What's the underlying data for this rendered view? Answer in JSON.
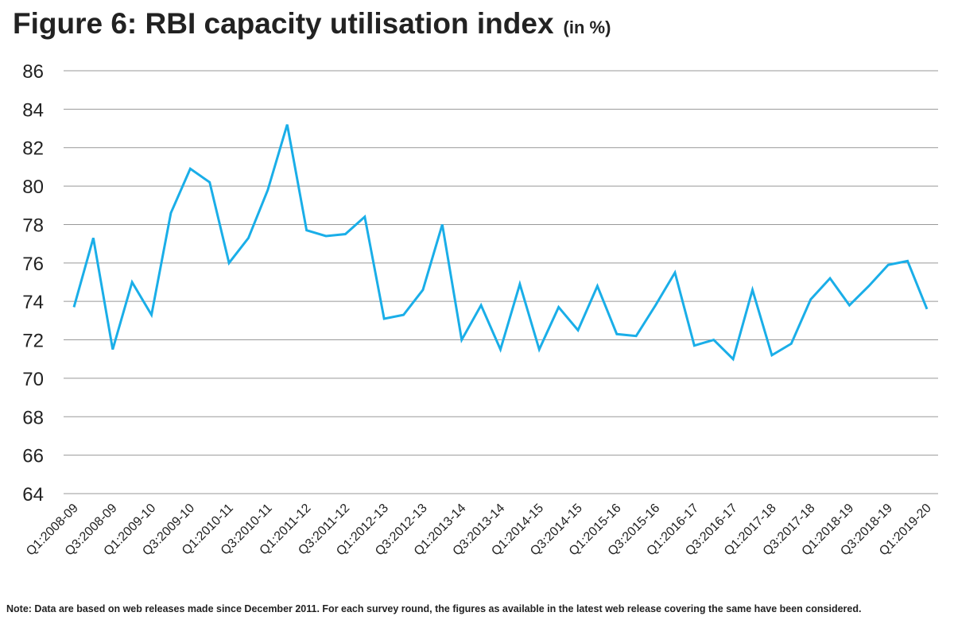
{
  "chart_data": {
    "type": "line",
    "title": "Figure 6: RBI capacity utilisation index",
    "subtitle": "(in %)",
    "note": "Note: Data are based on web releases made since December 2011. For each survey round, the figures as available in the latest web release covering the same have been considered.",
    "categories": [
      "Q1:2008-09",
      null,
      "Q3:2008-09",
      null,
      "Q1:2009-10",
      null,
      "Q3:2009-10",
      null,
      "Q1:2010-11",
      null,
      "Q3:2010-11",
      null,
      "Q1:2011-12",
      null,
      "Q3:2011-12",
      null,
      "Q1:2012-13",
      null,
      "Q3:2012-13",
      null,
      "Q1:2013-14",
      null,
      "Q3:2013-14",
      null,
      "Q1:2014-15",
      null,
      "Q3:2014-15",
      null,
      "Q1:2015-16",
      null,
      "Q3:2015-16",
      null,
      "Q1:2016-17",
      null,
      "Q3:2016-17",
      null,
      "Q1:2017-18",
      null,
      "Q3:2017-18",
      null,
      "Q1:2018-19",
      null,
      "Q3:2018-19",
      null,
      "Q1:2019-20"
    ],
    "values": [
      73.7,
      77.3,
      71.5,
      75.0,
      73.3,
      78.6,
      80.9,
      80.2,
      76.0,
      77.3,
      79.8,
      83.2,
      77.7,
      77.4,
      77.5,
      78.4,
      73.1,
      73.3,
      74.6,
      78.0,
      72.0,
      73.8,
      71.5,
      74.9,
      71.5,
      73.7,
      72.5,
      74.8,
      72.3,
      72.2,
      73.8,
      75.5,
      71.7,
      72.0,
      71.0,
      74.6,
      71.2,
      71.8,
      74.1,
      75.2,
      73.8,
      74.8,
      75.9,
      76.1,
      73.6
    ],
    "color": "#1aaee8",
    "ylim": [
      64,
      86
    ],
    "yticks": [
      64,
      66,
      68,
      70,
      72,
      74,
      76,
      78,
      80,
      82,
      84,
      86
    ],
    "grid": true
  }
}
